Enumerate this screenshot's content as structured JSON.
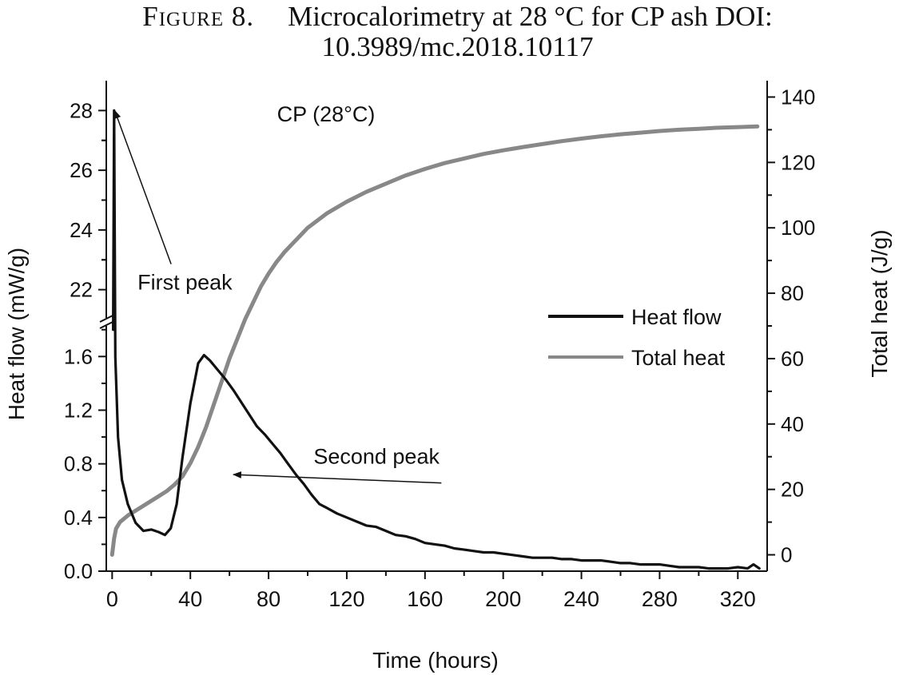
{
  "caption": {
    "figure_label": "Figure 8.",
    "line1": "Microcalorimetry at 28 °C for CP ash DOI:",
    "line2": "10.3989/mc.2018.10117"
  },
  "chart_data": {
    "type": "line",
    "title": "CP (28°C)",
    "xlabel": "Time (hours)",
    "ylabel_left": "Heat flow (mW/g)",
    "ylabel_right": "Total heat (J/g)",
    "xlim": [
      -3,
      335
    ],
    "x_ticks": [
      "0",
      "40",
      "80",
      "120",
      "160",
      "200",
      "240",
      "280",
      "320"
    ],
    "y_left_axis": {
      "lower_segment": {
        "range": [
          0,
          1.84
        ],
        "ticks": [
          "0.0",
          "0.4",
          "0.8",
          "1.2",
          "1.6"
        ]
      },
      "upper_segment": {
        "range": [
          21,
          29
        ],
        "ticks": [
          "22",
          "24",
          "26",
          "28"
        ]
      },
      "break_between": [
        1.84,
        21
      ]
    },
    "y_right_axis": {
      "range": [
        -5,
        145
      ],
      "ticks": [
        "0",
        "20",
        "40",
        "60",
        "80",
        "100",
        "120",
        "140"
      ]
    },
    "legend": {
      "placement": "right",
      "entries": [
        "Heat flow",
        "Total heat"
      ]
    },
    "series": [
      {
        "name": "Heat flow",
        "axis": "left",
        "color": "#111111",
        "points": [
          [
            0.5,
            1.8
          ],
          [
            0.8,
            25
          ],
          [
            1.0,
            28.0
          ],
          [
            1.2,
            25
          ],
          [
            1.6,
            1.6
          ],
          [
            3,
            1.0
          ],
          [
            5,
            0.68
          ],
          [
            8,
            0.5
          ],
          [
            12,
            0.36
          ],
          [
            16,
            0.3
          ],
          [
            20,
            0.31
          ],
          [
            24,
            0.29
          ],
          [
            27,
            0.27
          ],
          [
            30,
            0.32
          ],
          [
            33,
            0.5
          ],
          [
            36,
            0.85
          ],
          [
            40,
            1.25
          ],
          [
            44,
            1.55
          ],
          [
            47,
            1.61
          ],
          [
            50,
            1.57
          ],
          [
            54,
            1.5
          ],
          [
            58,
            1.43
          ],
          [
            62,
            1.35
          ],
          [
            66,
            1.26
          ],
          [
            70,
            1.17
          ],
          [
            74,
            1.08
          ],
          [
            78,
            1.02
          ],
          [
            82,
            0.95
          ],
          [
            86,
            0.88
          ],
          [
            90,
            0.8
          ],
          [
            94,
            0.72
          ],
          [
            98,
            0.65
          ],
          [
            102,
            0.57
          ],
          [
            106,
            0.5
          ],
          [
            110,
            0.47
          ],
          [
            115,
            0.43
          ],
          [
            120,
            0.4
          ],
          [
            125,
            0.37
          ],
          [
            130,
            0.34
          ],
          [
            135,
            0.33
          ],
          [
            140,
            0.3
          ],
          [
            145,
            0.27
          ],
          [
            150,
            0.26
          ],
          [
            155,
            0.24
          ],
          [
            160,
            0.21
          ],
          [
            165,
            0.2
          ],
          [
            170,
            0.19
          ],
          [
            175,
            0.17
          ],
          [
            180,
            0.16
          ],
          [
            185,
            0.15
          ],
          [
            190,
            0.14
          ],
          [
            195,
            0.14
          ],
          [
            200,
            0.13
          ],
          [
            205,
            0.12
          ],
          [
            210,
            0.11
          ],
          [
            215,
            0.1
          ],
          [
            220,
            0.1
          ],
          [
            225,
            0.1
          ],
          [
            230,
            0.09
          ],
          [
            235,
            0.09
          ],
          [
            240,
            0.08
          ],
          [
            245,
            0.08
          ],
          [
            250,
            0.08
          ],
          [
            255,
            0.07
          ],
          [
            260,
            0.06
          ],
          [
            265,
            0.06
          ],
          [
            270,
            0.05
          ],
          [
            275,
            0.05
          ],
          [
            280,
            0.05
          ],
          [
            285,
            0.04
          ],
          [
            290,
            0.03
          ],
          [
            295,
            0.03
          ],
          [
            300,
            0.03
          ],
          [
            305,
            0.02
          ],
          [
            310,
            0.02
          ],
          [
            315,
            0.02
          ],
          [
            320,
            0.03
          ],
          [
            325,
            0.02
          ],
          [
            328,
            0.05
          ],
          [
            331,
            0.02
          ]
        ]
      },
      {
        "name": "Total heat",
        "axis": "right",
        "color": "#888888",
        "points": [
          [
            0,
            0
          ],
          [
            1,
            5
          ],
          [
            2,
            8
          ],
          [
            4,
            10
          ],
          [
            8,
            12
          ],
          [
            12,
            13.5
          ],
          [
            16,
            15
          ],
          [
            20,
            16.5
          ],
          [
            24,
            18
          ],
          [
            28,
            19.5
          ],
          [
            32,
            21.5
          ],
          [
            36,
            24
          ],
          [
            40,
            28
          ],
          [
            44,
            33
          ],
          [
            48,
            39
          ],
          [
            52,
            46
          ],
          [
            56,
            53
          ],
          [
            60,
            60
          ],
          [
            64,
            66
          ],
          [
            68,
            72
          ],
          [
            72,
            77
          ],
          [
            76,
            82
          ],
          [
            80,
            86
          ],
          [
            84,
            89.5
          ],
          [
            88,
            92.5
          ],
          [
            92,
            95
          ],
          [
            100,
            100
          ],
          [
            110,
            104.5
          ],
          [
            120,
            108
          ],
          [
            130,
            111
          ],
          [
            140,
            113.5
          ],
          [
            150,
            116
          ],
          [
            160,
            118
          ],
          [
            170,
            119.8
          ],
          [
            180,
            121.2
          ],
          [
            190,
            122.6
          ],
          [
            200,
            123.7
          ],
          [
            210,
            124.7
          ],
          [
            220,
            125.6
          ],
          [
            230,
            126.5
          ],
          [
            240,
            127.3
          ],
          [
            250,
            128
          ],
          [
            260,
            128.6
          ],
          [
            270,
            129.1
          ],
          [
            280,
            129.6
          ],
          [
            290,
            130
          ],
          [
            300,
            130.3
          ],
          [
            310,
            130.6
          ],
          [
            320,
            130.8
          ],
          [
            330,
            131
          ]
        ]
      }
    ],
    "annotations": [
      {
        "text": "First peak",
        "label_at": [
          13,
          22
        ],
        "arrow_to": [
          1.3,
          28.0
        ],
        "axis": "left"
      },
      {
        "text": "Second peak",
        "label_at": [
          103,
          0.8
        ],
        "arrow_to": [
          62,
          0.72
        ],
        "axis": "left"
      }
    ]
  }
}
